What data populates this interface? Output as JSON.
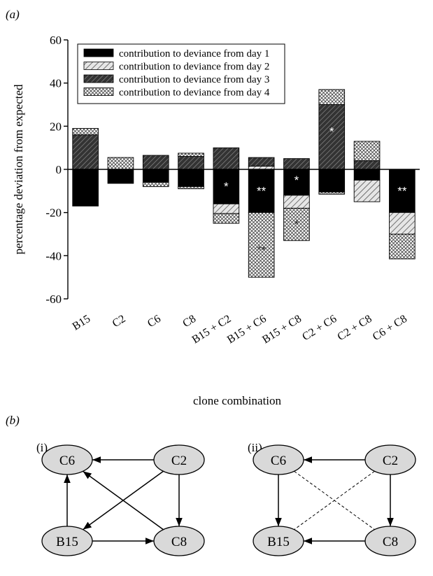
{
  "panel_a_label": "(a)",
  "panel_b_label": "(b)",
  "colors": {
    "day1": "#000000",
    "day2_fill": "#d9d9d9",
    "day3_fill": "#4d4d4d",
    "day4_fill": "#ffffff"
  },
  "chart_data": {
    "type": "bar",
    "stacked": true,
    "ylabel": "percentage deviation from expected",
    "xlabel": "clone combination",
    "ylim": [
      -60,
      60
    ],
    "yticks": [
      -60,
      -40,
      -20,
      0,
      20,
      40,
      60
    ],
    "categories": [
      "B15",
      "C2",
      "C6",
      "C8",
      "B15 + C2",
      "B15 + C6",
      "B15 + C8",
      "C2 + C6",
      "C2 + C8",
      "C6 + C8"
    ],
    "legend_position": "top-left",
    "series": [
      {
        "name": "contribution to deviance from day 1",
        "pattern": "solid",
        "values": [
          -17,
          -6.5,
          -6,
          -8,
          -16,
          -20,
          -12,
          -10.5,
          -5,
          -20
        ]
      },
      {
        "name": "contribution to deviance from day 2",
        "pattern": "light-hatch",
        "values": [
          0,
          0,
          0,
          0,
          -4.5,
          1.5,
          -6,
          0,
          -10,
          -10
        ]
      },
      {
        "name": "contribution to deviance from day 3",
        "pattern": "dark-hatch",
        "values": [
          16,
          0,
          6.5,
          6,
          10,
          4,
          5,
          30,
          4,
          0
        ]
      },
      {
        "name": "contribution to deviance from day 4",
        "pattern": "crosshatch",
        "values": [
          3,
          5.5,
          -2,
          1.5,
          -4.5,
          -30,
          -15,
          7,
          9,
          -11.5
        ]
      }
    ],
    "segments": [
      [
        {
          "s": 0,
          "y0": 0,
          "y1": -17
        },
        {
          "s": 2,
          "y0": 0,
          "y1": 16
        },
        {
          "s": 3,
          "y0": 16,
          "y1": 19
        }
      ],
      [
        {
          "s": 0,
          "y0": 0,
          "y1": -6.5
        },
        {
          "s": 3,
          "y0": 0,
          "y1": 5.5
        }
      ],
      [
        {
          "s": 0,
          "y0": 0,
          "y1": -6
        },
        {
          "s": 3,
          "y0": -6,
          "y1": -8
        },
        {
          "s": 2,
          "y0": 0,
          "y1": 6.5
        }
      ],
      [
        {
          "s": 0,
          "y0": 0,
          "y1": -8
        },
        {
          "s": 3,
          "y0": -8,
          "y1": -9
        },
        {
          "s": 2,
          "y0": 0,
          "y1": 6
        },
        {
          "s": 3,
          "y0": 6,
          "y1": 7.5
        }
      ],
      [
        {
          "s": 0,
          "y0": 0,
          "y1": -16
        },
        {
          "s": 1,
          "y0": -16,
          "y1": -20.5
        },
        {
          "s": 3,
          "y0": -20.5,
          "y1": -25
        },
        {
          "s": 2,
          "y0": 0,
          "y1": 10
        }
      ],
      [
        {
          "s": 0,
          "y0": 0,
          "y1": -20
        },
        {
          "s": 3,
          "y0": -20,
          "y1": -50
        },
        {
          "s": 1,
          "y0": 0,
          "y1": 1.5
        },
        {
          "s": 2,
          "y0": 1.5,
          "y1": 5.5
        }
      ],
      [
        {
          "s": 0,
          "y0": 0,
          "y1": -12
        },
        {
          "s": 1,
          "y0": -12,
          "y1": -18
        },
        {
          "s": 3,
          "y0": -18,
          "y1": -33
        },
        {
          "s": 2,
          "y0": 0,
          "y1": 5
        }
      ],
      [
        {
          "s": 0,
          "y0": 0,
          "y1": -10.5
        },
        {
          "s": 3,
          "y0": -10.5,
          "y1": -11.5
        },
        {
          "s": 2,
          "y0": 0,
          "y1": 30
        },
        {
          "s": 3,
          "y0": 30,
          "y1": 37
        }
      ],
      [
        {
          "s": 0,
          "y0": 0,
          "y1": -5
        },
        {
          "s": 1,
          "y0": -5,
          "y1": -15
        },
        {
          "s": 2,
          "y0": 0,
          "y1": 4
        },
        {
          "s": 3,
          "y0": 4,
          "y1": 13
        }
      ],
      [
        {
          "s": 0,
          "y0": 0,
          "y1": -20
        },
        {
          "s": 1,
          "y0": -20,
          "y1": -30
        },
        {
          "s": 3,
          "y0": -30,
          "y1": -41.5
        }
      ]
    ],
    "annotations": [
      {
        "category": 4,
        "y": -7.5,
        "text": "*",
        "color": "#ffffff"
      },
      {
        "category": 5,
        "y": -9.5,
        "text": "**",
        "color": "#ffffff"
      },
      {
        "category": 5,
        "y": -37,
        "text": "**",
        "color": "#333333"
      },
      {
        "category": 6,
        "y": -4.5,
        "text": "*",
        "color": "#ffffff"
      },
      {
        "category": 6,
        "y": -25,
        "text": "*",
        "color": "#333333"
      },
      {
        "category": 7,
        "y": 18,
        "text": "*",
        "color": "#ffffff"
      },
      {
        "category": 9,
        "y": -9.5,
        "text": "**",
        "color": "#ffffff"
      }
    ]
  },
  "diagrams": [
    {
      "label": "(i)",
      "nodes": {
        "C6": "C6",
        "C2": "C2",
        "B15": "B15",
        "C8": "C8"
      },
      "edges": [
        {
          "from": "C2",
          "to": "C6",
          "style": "arrow"
        },
        {
          "from": "C2",
          "to": "C8",
          "style": "arrow"
        },
        {
          "from": "C2",
          "to": "B15",
          "style": "arrow"
        },
        {
          "from": "C8",
          "to": "C6",
          "style": "arrow"
        },
        {
          "from": "B15",
          "to": "C6",
          "style": "arrow"
        },
        {
          "from": "B15",
          "to": "C8",
          "style": "arrow"
        }
      ]
    },
    {
      "label": "(ii)",
      "nodes": {
        "C6": "C6",
        "C2": "C2",
        "B15": "B15",
        "C8": "C8"
      },
      "edges": [
        {
          "from": "C2",
          "to": "C6",
          "style": "arrow"
        },
        {
          "from": "C2",
          "to": "C8",
          "style": "arrow"
        },
        {
          "from": "C6",
          "to": "B15",
          "style": "arrow"
        },
        {
          "from": "C8",
          "to": "B15",
          "style": "arrow"
        },
        {
          "from": "C2",
          "to": "B15",
          "style": "dashed"
        },
        {
          "from": "C6",
          "to": "C8",
          "style": "dashed"
        }
      ]
    }
  ]
}
